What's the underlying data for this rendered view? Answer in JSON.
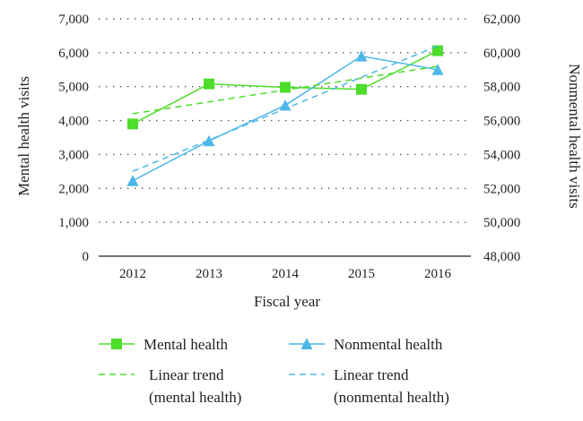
{
  "chart_data": {
    "type": "line",
    "title": "",
    "xlabel": "Fiscal year",
    "ylabel": "Mental health visits",
    "y2label": "Nonmental health visits",
    "categories": [
      "2012",
      "2013",
      "2014",
      "2015",
      "2016"
    ],
    "ylim": [
      0,
      7000
    ],
    "y2lim": [
      48000,
      62000
    ],
    "y_ticks": [
      "0",
      "1,000",
      "2,000",
      "3,000",
      "4,000",
      "5,000",
      "6,000",
      "7,000"
    ],
    "y2_ticks": [
      "48,000",
      "50,000",
      "52,000",
      "54,000",
      "56,000",
      "58,000",
      "60,000",
      "62,000"
    ],
    "grid": "horizontal dotted",
    "legend_position": "bottom",
    "series": [
      {
        "name": "Mental health",
        "axis": "left",
        "marker": "square",
        "style": "solid",
        "color": "#4ddd2a",
        "values": [
          3900,
          5080,
          4980,
          4920,
          6060
        ]
      },
      {
        "name": "Nonmental health",
        "axis": "right",
        "marker": "triangle",
        "style": "solid",
        "color": "#4db8e8",
        "values": [
          52450,
          54800,
          56900,
          59800,
          59000
        ]
      },
      {
        "name": "Linear trend (mental health)",
        "legend_lines": [
          "Linear trend",
          "(mental health)"
        ],
        "axis": "left",
        "style": "dashed",
        "color": "#4ddd2a",
        "values": [
          4200,
          4550,
          4900,
          5250,
          5600
        ]
      },
      {
        "name": "Linear trend (nonmental health)",
        "legend_lines": [
          "Linear trend",
          "(nonmental health)"
        ],
        "axis": "right",
        "style": "dashed",
        "color": "#4db8e8",
        "values": [
          53000,
          54850,
          56700,
          58550,
          60400
        ]
      }
    ]
  }
}
